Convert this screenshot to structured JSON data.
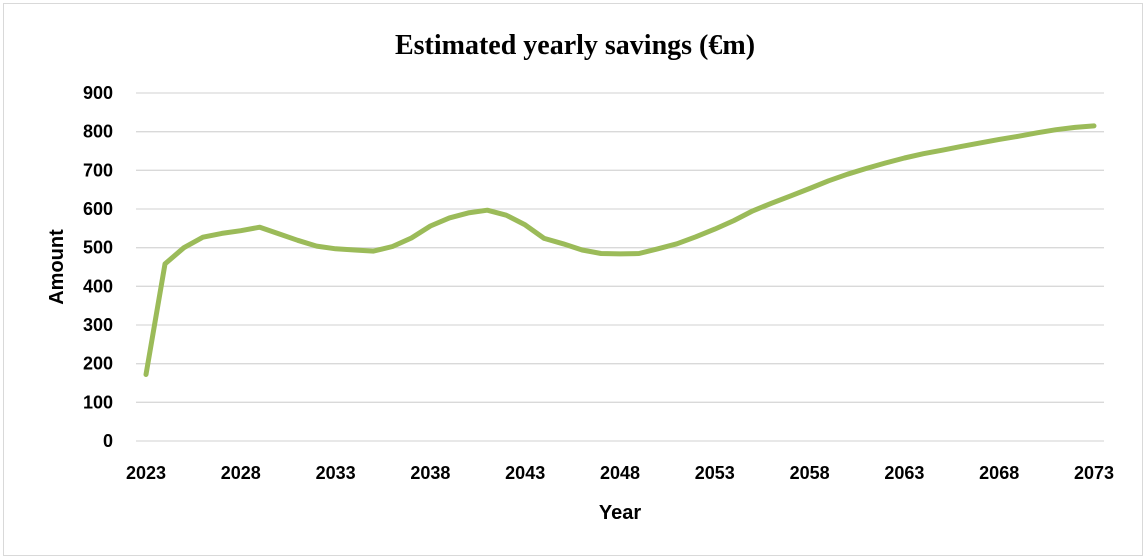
{
  "chart_data": {
    "type": "line",
    "title": "Estimated yearly savings (€m)",
    "xlabel": "Year",
    "ylabel": "Amount",
    "ylim": [
      0,
      900
    ],
    "y_ticks": [
      0,
      100,
      200,
      300,
      400,
      500,
      600,
      700,
      800,
      900
    ],
    "xlim": [
      2023,
      2073
    ],
    "x_ticks": [
      2023,
      2028,
      2033,
      2038,
      2043,
      2048,
      2053,
      2058,
      2063,
      2068,
      2073
    ],
    "grid": true,
    "legend": "none",
    "colors": {
      "line": "#9bbb59",
      "grid": "#d9d9d9"
    },
    "series": [
      {
        "x": [
          2023,
          2024,
          2025,
          2026,
          2027,
          2028,
          2029,
          2030,
          2031,
          2032,
          2033,
          2034,
          2035,
          2036,
          2037,
          2038,
          2039,
          2040,
          2041,
          2042,
          2043,
          2044,
          2045,
          2046,
          2047,
          2048,
          2049,
          2050,
          2051,
          2052,
          2053,
          2054,
          2055,
          2056,
          2057,
          2058,
          2059,
          2060,
          2061,
          2062,
          2063,
          2064,
          2065,
          2066,
          2067,
          2068,
          2069,
          2070,
          2071,
          2072,
          2073
        ],
        "values": [
          172,
          458,
          500,
          527,
          537,
          544,
          553,
          536,
          519,
          504,
          497,
          494,
          491,
          503,
          525,
          556,
          577,
          590,
          597,
          584,
          559,
          524,
          510,
          494,
          485,
          484,
          485,
          497,
          510,
          528,
          548,
          570,
          595,
          615,
          634,
          653,
          673,
          690,
          705,
          719,
          732,
          743,
          752,
          762,
          771,
          780,
          788,
          797,
          805,
          811,
          815
        ]
      }
    ]
  }
}
